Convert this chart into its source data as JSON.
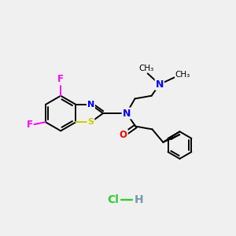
{
  "bg_color": "#f0f0f0",
  "bond_color": "#000000",
  "N_color": "#0000ff",
  "S_color": "#cccc00",
  "O_color": "#ff0000",
  "F_color": "#ff00ff",
  "Cl_color": "#33cc33",
  "H_color": "#7799aa",
  "bond_lw": 1.4,
  "figsize": [
    3.0,
    3.0
  ],
  "dpi": 100,
  "xlim": [
    0,
    10
  ],
  "ylim": [
    0,
    10
  ]
}
